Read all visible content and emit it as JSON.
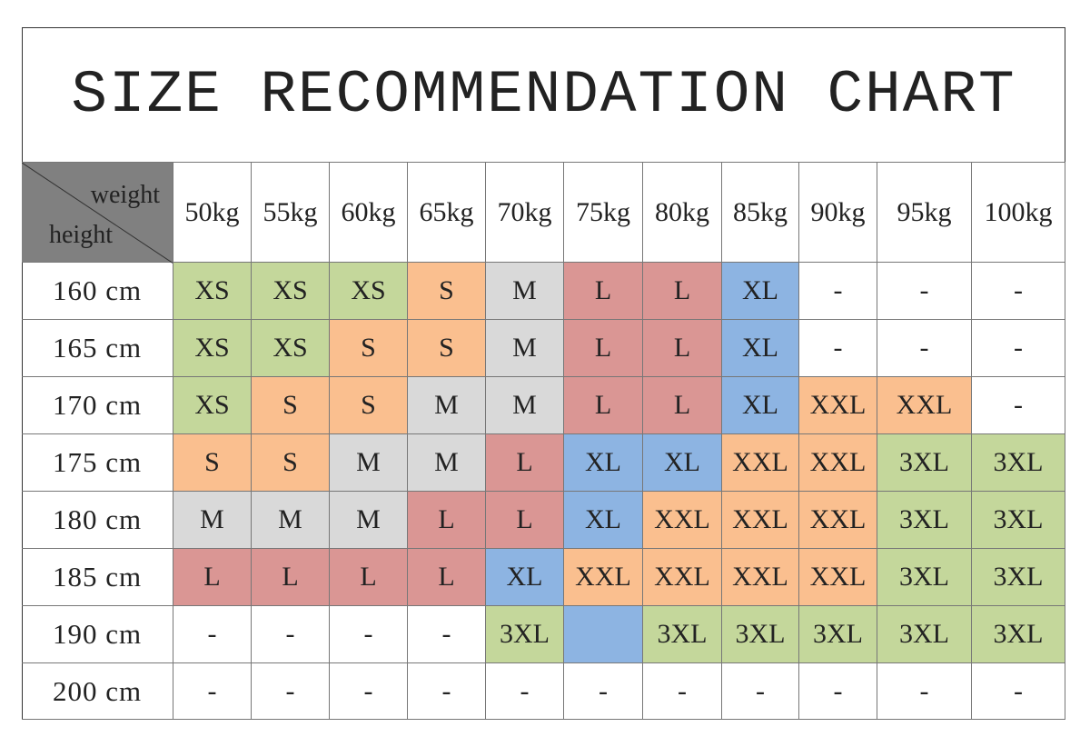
{
  "title": "SIZE RECOMMENDATION CHART",
  "corner": {
    "top": "weight",
    "bottom": "height"
  },
  "columns": [
    "50kg",
    "55kg",
    "60kg",
    "65kg",
    "70kg",
    "75kg",
    "80kg",
    "85kg",
    "90kg",
    "95kg",
    "100kg"
  ],
  "rows": [
    {
      "label": "160 cm",
      "cells": [
        "XS",
        "XS",
        "XS",
        "S",
        "M",
        "L",
        "L",
        "XL",
        "-",
        "-",
        "-"
      ],
      "fills": [
        "#c4d79b",
        "#c4d79b",
        "#c4d79b",
        "#fabf8f",
        "#d9d9d9",
        "#da9694",
        "#da9694",
        "#8db4e2",
        "#ffffff",
        "#ffffff",
        "#ffffff"
      ]
    },
    {
      "label": "165 cm",
      "cells": [
        "XS",
        "XS",
        "S",
        "S",
        "M",
        "L",
        "L",
        "XL",
        "-",
        "-",
        "-"
      ],
      "fills": [
        "#c4d79b",
        "#c4d79b",
        "#fabf8f",
        "#fabf8f",
        "#d9d9d9",
        "#da9694",
        "#da9694",
        "#8db4e2",
        "#ffffff",
        "#ffffff",
        "#ffffff"
      ]
    },
    {
      "label": "170 cm",
      "cells": [
        "XS",
        "S",
        "S",
        "M",
        "M",
        "L",
        "L",
        "XL",
        "XXL",
        "XXL",
        "-"
      ],
      "fills": [
        "#c4d79b",
        "#fabf8f",
        "#fabf8f",
        "#d9d9d9",
        "#d9d9d9",
        "#da9694",
        "#da9694",
        "#8db4e2",
        "#fabf8f",
        "#fabf8f",
        "#ffffff"
      ]
    },
    {
      "label": "175 cm",
      "cells": [
        "S",
        "S",
        "M",
        "M",
        "L",
        "XL",
        "XL",
        "XXL",
        "XXL",
        "3XL",
        "3XL"
      ],
      "fills": [
        "#fabf8f",
        "#fabf8f",
        "#d9d9d9",
        "#d9d9d9",
        "#da9694",
        "#8db4e2",
        "#8db4e2",
        "#fabf8f",
        "#fabf8f",
        "#c4d79b",
        "#c4d79b"
      ]
    },
    {
      "label": "180 cm",
      "cells": [
        "M",
        "M",
        "M",
        "L",
        "L",
        "XL",
        "XXL",
        "XXL",
        "XXL",
        "3XL",
        "3XL"
      ],
      "fills": [
        "#d9d9d9",
        "#d9d9d9",
        "#d9d9d9",
        "#da9694",
        "#da9694",
        "#8db4e2",
        "#fabf8f",
        "#fabf8f",
        "#fabf8f",
        "#c4d79b",
        "#c4d79b"
      ]
    },
    {
      "label": "185 cm",
      "cells": [
        "L",
        "L",
        "L",
        "L",
        "XL",
        "XXL",
        "XXL",
        "XXL",
        "XXL",
        "3XL",
        "3XL"
      ],
      "fills": [
        "#da9694",
        "#da9694",
        "#da9694",
        "#da9694",
        "#8db4e2",
        "#fabf8f",
        "#fabf8f",
        "#fabf8f",
        "#fabf8f",
        "#c4d79b",
        "#c4d79b"
      ]
    },
    {
      "label": "190 cm",
      "cells": [
        "-",
        "-",
        "-",
        "-",
        "3XL",
        null,
        "3XL",
        "3XL",
        "3XL",
        "3XL",
        "3XL"
      ],
      "fills": [
        "#ffffff",
        "#ffffff",
        "#ffffff",
        "#ffffff",
        "#c4d79b",
        "#8db4e2",
        "#c4d79b",
        "#c4d79b",
        "#c4d79b",
        "#c4d79b",
        "#c4d79b"
      ]
    },
    {
      "label": "200 cm",
      "cells": [
        "-",
        "-",
        "-",
        "-",
        "-",
        "-",
        "-",
        "-",
        "-",
        "-",
        "-"
      ],
      "fills": [
        "#ffffff",
        "#ffffff",
        "#ffffff",
        "#ffffff",
        "#ffffff",
        "#ffffff",
        "#ffffff",
        "#ffffff",
        "#ffffff",
        "#ffffff",
        "#ffffff"
      ]
    }
  ]
}
